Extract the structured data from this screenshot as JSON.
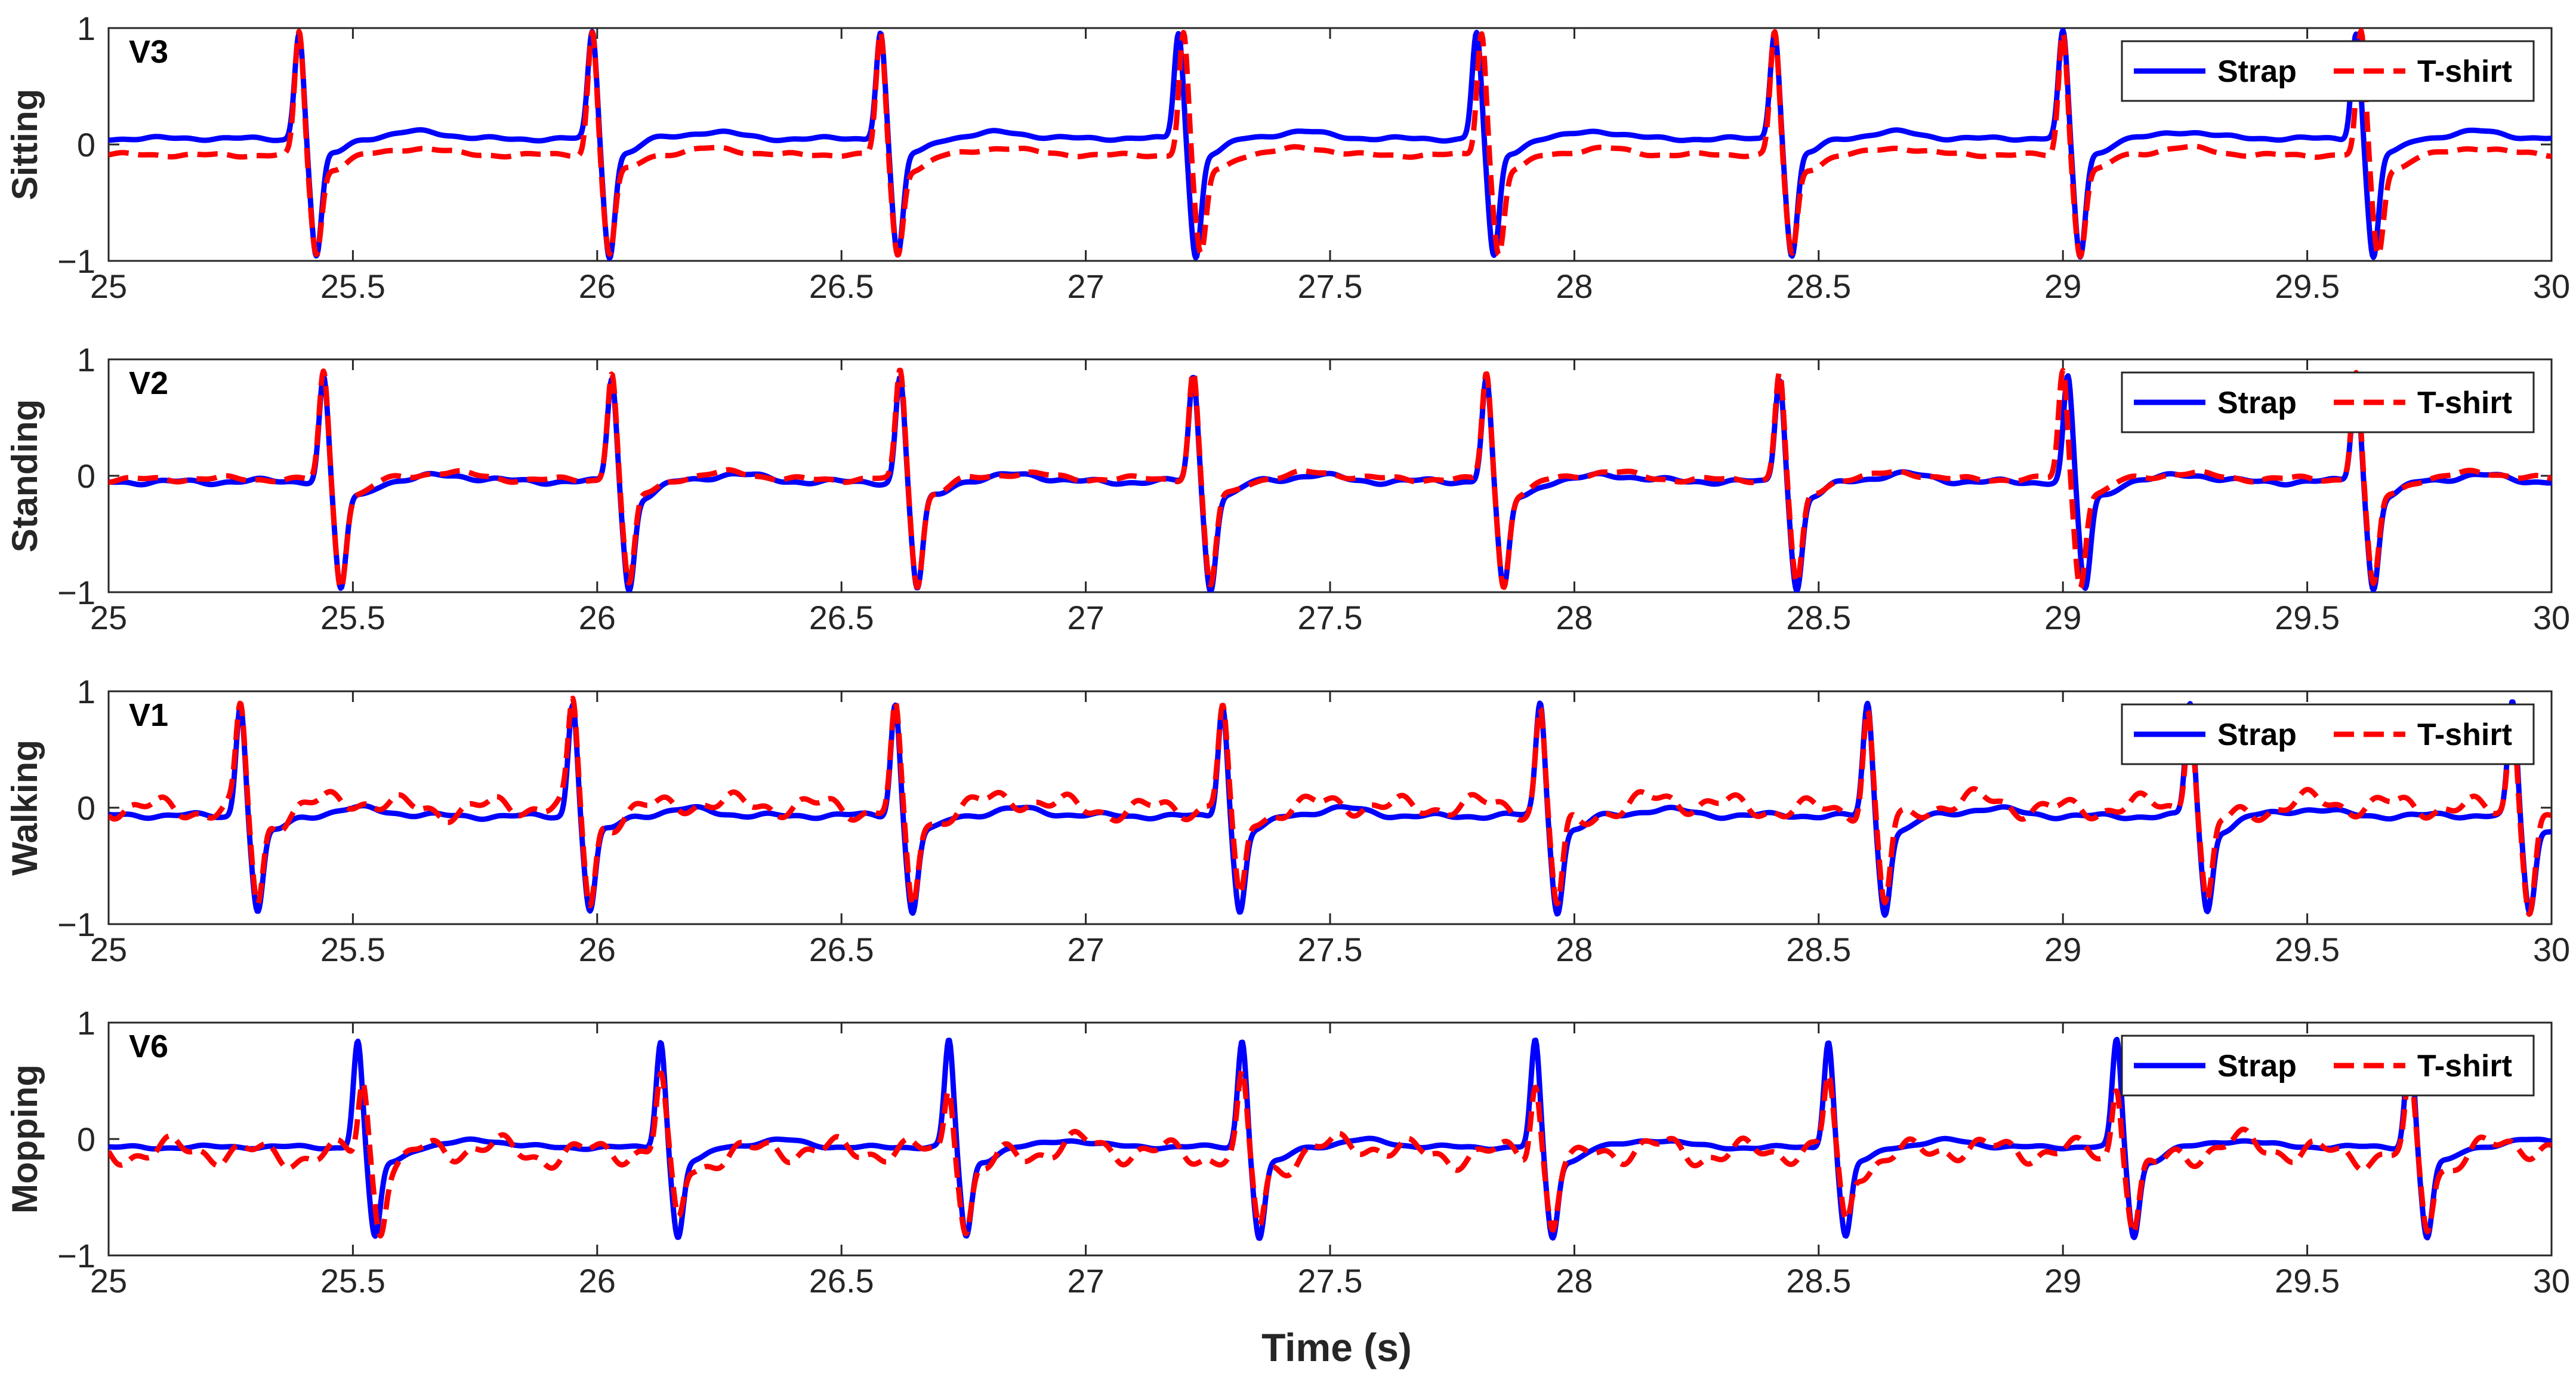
{
  "chart_data": {
    "type": "line",
    "xlabel": "Time (s)",
    "xlim": [
      25,
      30
    ],
    "ylim": [
      -1,
      1
    ],
    "xticks": [
      25,
      25.5,
      26,
      26.5,
      27,
      27.5,
      28,
      28.5,
      29,
      29.5,
      30
    ],
    "yticks": [
      -1,
      0,
      1
    ],
    "grid": "off",
    "legend_position": "top-right",
    "colors": {
      "strap": "#0000ff",
      "tshirt": "#ff0000"
    },
    "panels": [
      {
        "ylabel": "Sitting",
        "lead": "V3",
        "series": [
          {
            "name": "Strap",
            "style": "solid",
            "color": "#0000ff",
            "baseline": 0.05,
            "beats": [
              25.39,
              25.99,
              26.58,
              27.19,
              27.8,
              28.41,
              29.0,
              29.6
            ],
            "peak": 0.97,
            "trough": -0.92,
            "noise": 0.02
          },
          {
            "name": "T-shirt",
            "style": "dashed",
            "color": "#ff0000",
            "baseline": -0.09,
            "beats": [
              25.39,
              25.99,
              26.58,
              27.2,
              27.81,
              28.41,
              29.0,
              29.61
            ],
            "peak": 0.97,
            "trough": -0.9,
            "noise": 0.02
          }
        ]
      },
      {
        "ylabel": "Standing",
        "lead": "V2",
        "series": [
          {
            "name": "Strap",
            "style": "solid",
            "color": "#0000ff",
            "baseline": -0.05,
            "beats": [
              25.44,
              26.03,
              26.62,
              27.22,
              27.82,
              28.42,
              29.01,
              29.6
            ],
            "peak": 0.85,
            "trough": -0.93,
            "noise": 0.03
          },
          {
            "name": "T-shirt",
            "style": "dashed",
            "color": "#ff0000",
            "baseline": -0.03,
            "beats": [
              25.44,
              26.03,
              26.62,
              27.22,
              27.82,
              28.42,
              29.0,
              29.6
            ],
            "peak": 0.9,
            "trough": -0.9,
            "noise": 0.03
          }
        ]
      },
      {
        "ylabel": "Walking",
        "lead": "V1",
        "series": [
          {
            "name": "Strap",
            "style": "solid",
            "color": "#0000ff",
            "baseline": -0.07,
            "beats": [
              25.27,
              25.95,
              26.61,
              27.28,
              27.93,
              28.6,
              29.26,
              29.92
            ],
            "peak": 0.9,
            "trough": -0.85,
            "noise": 0.03
          },
          {
            "name": "T-shirt",
            "style": "dashed",
            "color": "#ff0000",
            "baseline": 0.0,
            "beats": [
              25.27,
              25.95,
              26.61,
              27.28,
              27.93,
              28.6,
              29.26,
              29.92
            ],
            "peak": 0.85,
            "trough": -0.8,
            "noise": 0.13
          }
        ]
      },
      {
        "ylabel": "Mopping",
        "lead": "V6",
        "series": [
          {
            "name": "Strap",
            "style": "solid",
            "color": "#0000ff",
            "baseline": -0.07,
            "beats": [
              25.51,
              26.13,
              26.72,
              27.32,
              27.92,
              28.52,
              29.11,
              29.71
            ],
            "peak": 0.85,
            "trough": -0.8,
            "noise": 0.02
          },
          {
            "name": "T-shirt",
            "style": "dashed",
            "color": "#ff0000",
            "baseline": -0.12,
            "beats": [
              25.52,
              26.13,
              26.72,
              27.32,
              27.92,
              28.52,
              29.11,
              29.71
            ],
            "peak": 0.5,
            "trough": -0.7,
            "noise": 0.15
          }
        ]
      }
    ]
  }
}
